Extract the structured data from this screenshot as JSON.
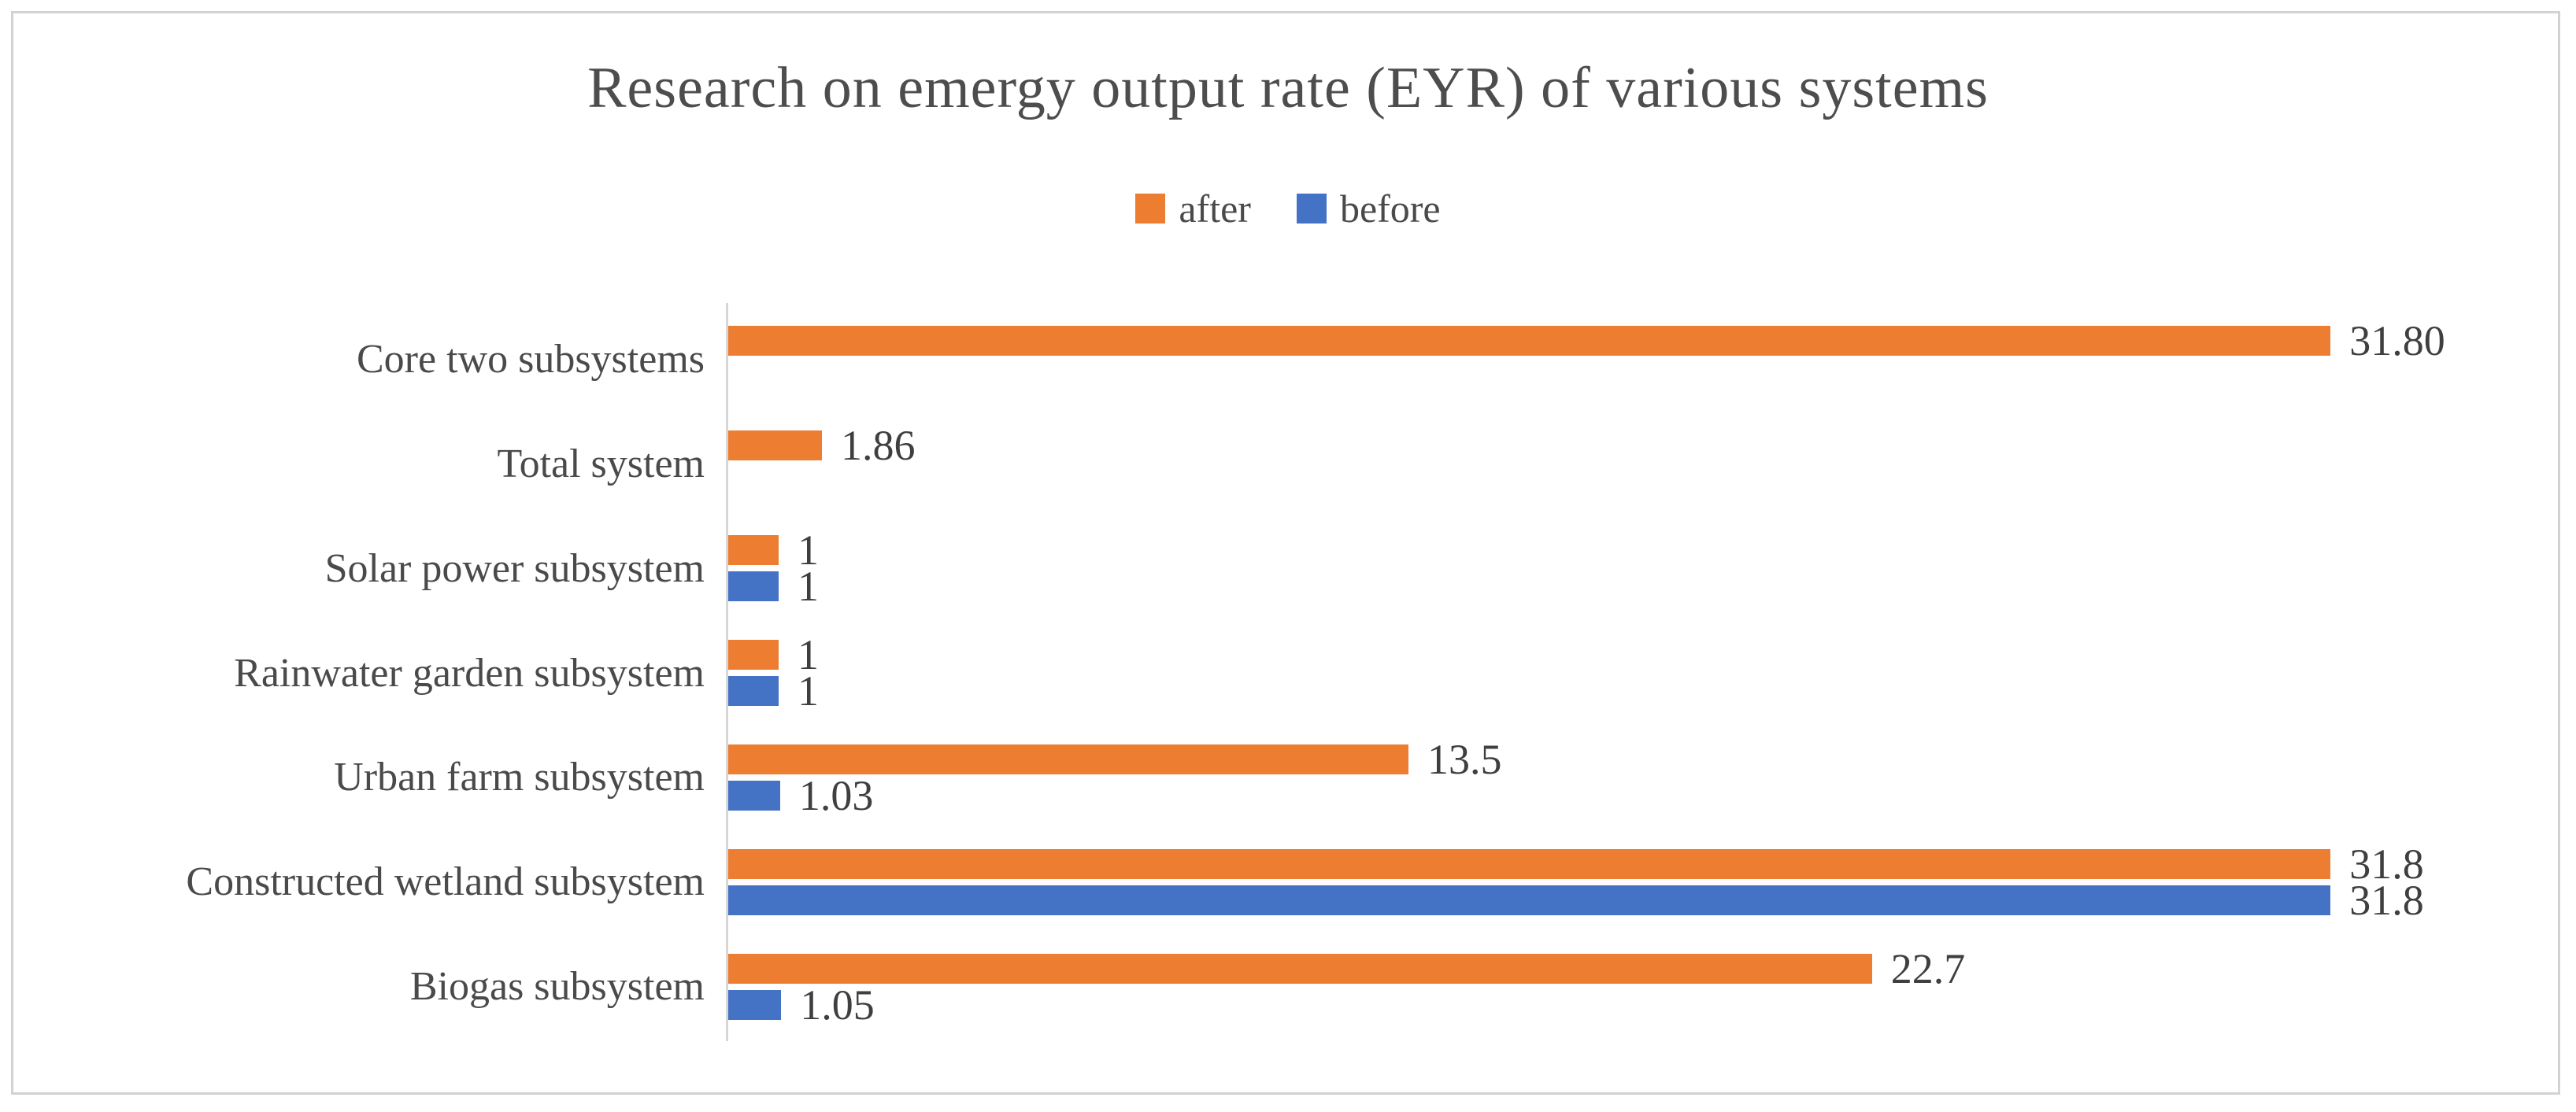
{
  "chart_data": {
    "type": "bar",
    "orientation": "horizontal",
    "title": "Research on emergy output rate (EYR) of various systems",
    "categories": [
      "Core two subsystems",
      "Total system",
      "Solar power subsystem",
      "Rainwater garden subsystem",
      "Urban farm subsystem",
      "Constructed wetland subsystem",
      "Biogas subsystem"
    ],
    "series": [
      {
        "name": "after",
        "color": "#ED7D31",
        "values": [
          31.8,
          1.86,
          1,
          1,
          13.5,
          31.8,
          22.7
        ],
        "data_labels": [
          "31.80",
          "1.86",
          "1",
          "1",
          "13.5",
          "31.8",
          "22.7"
        ]
      },
      {
        "name": "before",
        "color": "#4472C4",
        "values": [
          null,
          null,
          1,
          1,
          1.03,
          31.8,
          1.05
        ],
        "data_labels": [
          null,
          null,
          "1",
          "1",
          "1.03",
          "31.8",
          "1.05"
        ]
      }
    ],
    "xlim": [
      0,
      31.8
    ],
    "legend_position": "top-center",
    "grid": false,
    "value_axis_visible": false,
    "category_axis_line_color": "#d6d6d6",
    "frame_border_color": "#d2d2d2"
  }
}
